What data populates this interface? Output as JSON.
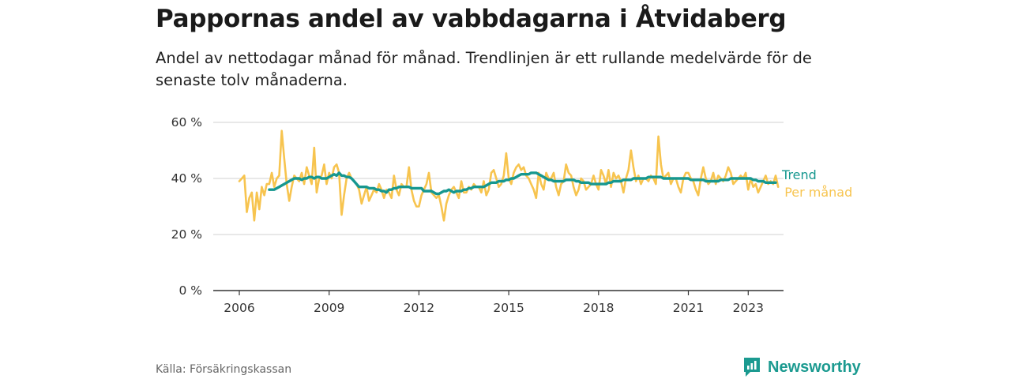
{
  "title": "Pappornas andel av vabbdagarna i Åtvidaberg",
  "subtitle": "Andel av nettodagar månad för månad. Trendlinjen är ett rullande medelvärde för de senaste tolv månaderna.",
  "source": "Källa: Försäkringskassan",
  "brand": {
    "name": "Newsworthy",
    "icon": "newsworthy-logo-icon",
    "color": "#1b9a90"
  },
  "chart_data": {
    "type": "line",
    "title": "Pappornas andel av vabbdagarna i Åtvidaberg",
    "xlabel": "",
    "ylabel": "",
    "ylim": [
      0,
      60
    ],
    "yticks": [
      0,
      20,
      40,
      60
    ],
    "ytick_labels": [
      "0 %",
      "20 %",
      "40 %",
      "60 %"
    ],
    "xlim": [
      2006.0,
      2024.0
    ],
    "xticks": [
      2006,
      2009,
      2012,
      2015,
      2018,
      2021,
      2023
    ],
    "xtick_labels": [
      "2006",
      "2009",
      "2012",
      "2015",
      "2018",
      "2021",
      "2023"
    ],
    "grid": "horizontal",
    "legend_placement": "line-end-labels",
    "series": [
      {
        "name": "Per månad",
        "color": "#f7c44f",
        "start": "2006-01",
        "step": "month",
        "values": [
          39,
          40,
          41,
          28,
          33,
          35,
          25,
          35,
          29,
          37,
          34,
          38,
          38,
          42,
          37,
          40,
          41,
          57,
          47,
          38,
          32,
          37,
          41,
          40,
          39,
          42,
          38,
          44,
          41,
          38,
          51,
          35,
          40,
          41,
          45,
          38,
          42,
          40,
          44,
          45,
          42,
          27,
          34,
          40,
          42,
          40,
          39,
          38,
          36,
          31,
          34,
          37,
          32,
          34,
          36,
          35,
          38,
          36,
          33,
          36,
          35,
          33,
          41,
          36,
          34,
          38,
          37,
          37,
          44,
          36,
          32,
          30,
          30,
          34,
          36,
          38,
          42,
          35,
          34,
          33,
          34,
          30,
          25,
          31,
          34,
          36,
          37,
          35,
          33,
          39,
          35,
          35,
          37,
          36,
          38,
          37,
          37,
          35,
          39,
          34,
          36,
          42,
          43,
          40,
          37,
          38,
          41,
          49,
          40,
          38,
          42,
          44,
          45,
          43,
          44,
          41,
          40,
          38,
          36,
          33,
          42,
          38,
          36,
          42,
          40,
          40,
          42,
          37,
          34,
          38,
          39,
          45,
          42,
          41,
          37,
          34,
          36,
          40,
          39,
          36,
          37,
          38,
          41,
          38,
          36,
          43,
          41,
          38,
          43,
          37,
          42,
          40,
          41,
          39,
          35,
          40,
          43,
          50,
          44,
          39,
          41,
          38,
          40,
          40,
          39,
          41,
          40,
          38,
          55,
          45,
          40,
          41,
          42,
          38,
          40,
          40,
          37,
          35,
          40,
          42,
          42,
          40,
          39,
          36,
          34,
          40,
          44,
          40,
          38,
          39,
          42,
          38,
          41,
          40,
          39,
          41,
          44,
          42,
          38,
          39,
          40,
          41,
          40,
          42,
          36,
          40,
          37,
          38,
          35,
          37,
          39,
          41,
          38,
          39,
          38,
          41,
          37
        ]
      },
      {
        "name": "Trend",
        "color": "#16978f",
        "start": "2007-01",
        "step": "month",
        "values": [
          36,
          36,
          36,
          36.5,
          37,
          37.5,
          38,
          38.5,
          39,
          39.5,
          40,
          40,
          40,
          39.5,
          40,
          40,
          40.5,
          40.5,
          40,
          40.5,
          40.5,
          40,
          40,
          40,
          40.5,
          41,
          41.5,
          41,
          42,
          41,
          41,
          40.5,
          40.5,
          40,
          39,
          38,
          37,
          37,
          37,
          37,
          36.5,
          36.5,
          36.5,
          36,
          36,
          35.5,
          35.5,
          35,
          36,
          36,
          36.5,
          36.5,
          37,
          37,
          37,
          37,
          37,
          36.5,
          36.5,
          36.5,
          36.5,
          36.5,
          35.5,
          35.5,
          35.5,
          35.5,
          35,
          34.5,
          34.5,
          35,
          35.5,
          35.5,
          36,
          35.5,
          35,
          35.5,
          35.5,
          35.5,
          36,
          36,
          36.5,
          36.5,
          37,
          37,
          37,
          37,
          37,
          37.5,
          38,
          38.5,
          38.5,
          38.5,
          39,
          39,
          39,
          39.5,
          39.5,
          40,
          40,
          40.5,
          41,
          41.5,
          41.5,
          41.5,
          41.5,
          42,
          42,
          42,
          41.5,
          41,
          40.5,
          40,
          39.5,
          39.5,
          39,
          39,
          39,
          39,
          39,
          39.5,
          39.5,
          39.5,
          39.5,
          39,
          39,
          38.5,
          38.5,
          38.5,
          38.5,
          38,
          38,
          38,
          38,
          38,
          38,
          38,
          38.5,
          38.5,
          39,
          39,
          39,
          39,
          39.5,
          39.5,
          39.5,
          39.5,
          40,
          40,
          40,
          40,
          40,
          40,
          40.5,
          40.5,
          40.5,
          40.5,
          40.5,
          40.5,
          40,
          40,
          40,
          40,
          40,
          40,
          40,
          40,
          40,
          40,
          40,
          39.5,
          39.5,
          39.5,
          39.5,
          39.5,
          39.5,
          39,
          39,
          39,
          39,
          39,
          39,
          39.5,
          39.5,
          39.5,
          39.5,
          40,
          40,
          40,
          40,
          40,
          40,
          40,
          40,
          40,
          39.5,
          39.5,
          39,
          39,
          39,
          38.5,
          38.5,
          38.5,
          38.5,
          38.5
        ]
      }
    ]
  }
}
